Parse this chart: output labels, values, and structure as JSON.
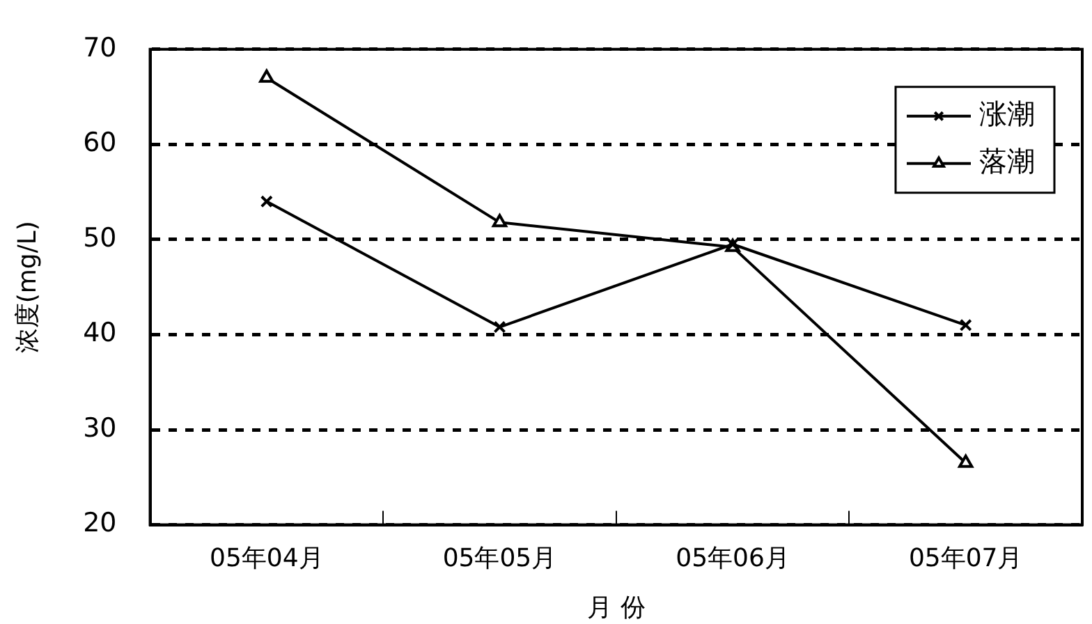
{
  "chart_data": {
    "type": "line",
    "xlabel": "月 份",
    "ylabel": "浓度(mg/L)",
    "categories": [
      "05年04月",
      "05年05月",
      "05年06月",
      "05年07月"
    ],
    "series": [
      {
        "name": "涨潮",
        "color": "#000000",
        "marker": "cross",
        "values": [
          54,
          40.8,
          49.5,
          41
        ]
      },
      {
        "name": "落潮",
        "color": "#000000",
        "marker": "triangle",
        "values": [
          67,
          51.8,
          49.2,
          26.5
        ]
      }
    ],
    "ylim": [
      20,
      70
    ],
    "yticks": [
      20,
      30,
      40,
      50,
      60,
      70
    ],
    "grid": "y",
    "legend": "top right",
    "line_style": "solid"
  }
}
